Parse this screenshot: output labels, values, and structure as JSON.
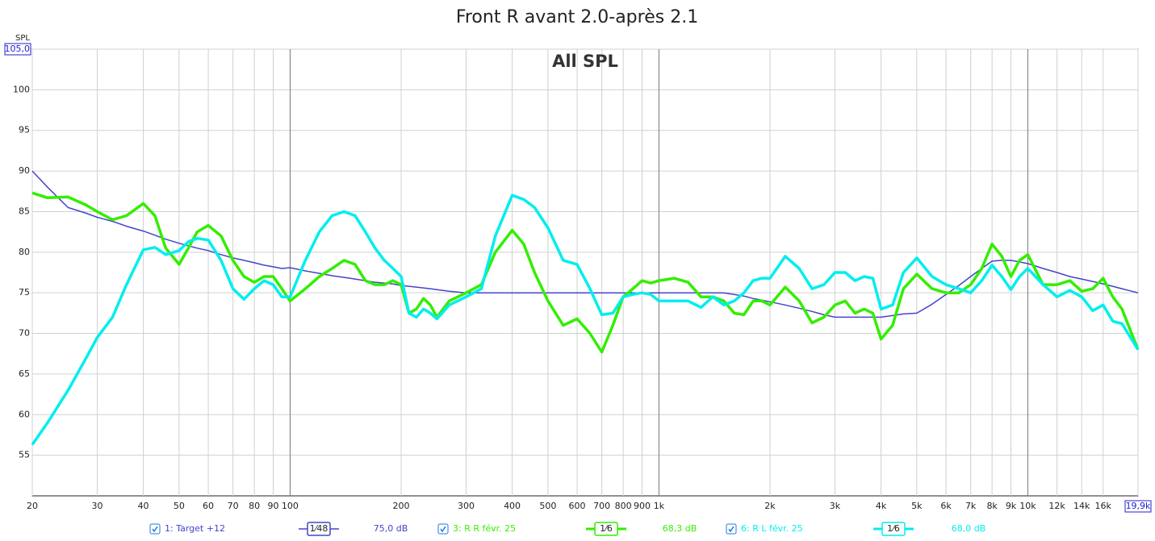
{
  "chart_data": {
    "type": "line",
    "title": "Front R avant 2.0-après 2.1",
    "annotation": "All SPL",
    "y_label": "SPL",
    "log_x": true,
    "grid": true,
    "xlim": [
      20,
      19900
    ],
    "ylim": [
      50,
      105
    ],
    "yticks": [
      55,
      60,
      65,
      70,
      75,
      80,
      85,
      90,
      95,
      100,
      {
        "value": 105,
        "label": "105,0"
      }
    ],
    "xticks": [
      20,
      30,
      40,
      50,
      60,
      70,
      80,
      90,
      100,
      200,
      300,
      400,
      500,
      600,
      700,
      800,
      900,
      {
        "value": 1000,
        "label": "1k"
      },
      {
        "value": 2000,
        "label": "2k"
      },
      {
        "value": 3000,
        "label": "3k"
      },
      {
        "value": 4000,
        "label": "4k"
      },
      {
        "value": 5000,
        "label": "5k"
      },
      {
        "value": 6000,
        "label": "6k"
      },
      {
        "value": 7000,
        "label": "7k"
      },
      {
        "value": 8000,
        "label": "8k"
      },
      {
        "value": 9000,
        "label": "9k"
      },
      {
        "value": 10000,
        "label": "10k"
      },
      {
        "value": 12000,
        "label": "12k"
      },
      {
        "value": 14000,
        "label": "14k"
      },
      {
        "value": 16000,
        "label": "16k"
      },
      {
        "value": 19900,
        "label": "19,9k"
      }
    ],
    "x": [
      20,
      22,
      25,
      28,
      30,
      33,
      36,
      40,
      43,
      46,
      50,
      53,
      56,
      60,
      65,
      70,
      75,
      80,
      85,
      90,
      95,
      100,
      110,
      120,
      130,
      140,
      150,
      160,
      170,
      180,
      190,
      200,
      210,
      220,
      230,
      240,
      250,
      270,
      300,
      330,
      360,
      400,
      430,
      460,
      500,
      550,
      600,
      650,
      700,
      750,
      800,
      850,
      900,
      950,
      1000,
      1100,
      1200,
      1300,
      1400,
      1500,
      1600,
      1700,
      1800,
      1900,
      2000,
      2200,
      2400,
      2600,
      2800,
      3000,
      3200,
      3400,
      3600,
      3800,
      4000,
      4300,
      4600,
      5000,
      5500,
      6000,
      6500,
      7000,
      7500,
      8000,
      8500,
      9000,
      9500,
      10000,
      11000,
      12000,
      13000,
      14000,
      15000,
      16000,
      17000,
      18000,
      19900
    ],
    "series": [
      {
        "name": "1: Target +12",
        "color": "#4444cc",
        "width": 1.5,
        "smoothing": "1⁄48",
        "level": "75,0 dB",
        "values": [
          90,
          88,
          85.5,
          84.8,
          84.3,
          83.8,
          83.2,
          82.6,
          82.1,
          81.6,
          81.1,
          80.8,
          80.5,
          80.2,
          79.7,
          79.3,
          79,
          78.7,
          78.4,
          78.2,
          78,
          78.1,
          77.7,
          77.4,
          77.1,
          76.9,
          76.7,
          76.5,
          76.3,
          76.2,
          76.1,
          75.9,
          75.8,
          75.7,
          75.6,
          75.5,
          75.4,
          75.2,
          75,
          75,
          75,
          75,
          75,
          75,
          75,
          75,
          75,
          75,
          75,
          75,
          75,
          75,
          75,
          75,
          75,
          75,
          75,
          75,
          75,
          75,
          74.8,
          74.6,
          74.3,
          74.1,
          73.9,
          73.5,
          73.1,
          72.7,
          72.3,
          72,
          72,
          72,
          72,
          72,
          72,
          72.2,
          72.4,
          72.5,
          73.6,
          74.8,
          75.9,
          77,
          78,
          78.9,
          79,
          79,
          78.8,
          78.6,
          78,
          77.5,
          77,
          76.7,
          76.4,
          76.1,
          75.8,
          75.5,
          75
        ]
      },
      {
        "name": "3: R R févr. 25",
        "color": "#33ee00",
        "width": 3.5,
        "smoothing": "1⁄6",
        "level": "68,3 dB",
        "values": [
          87.3,
          86.7,
          86.8,
          85.8,
          85,
          84,
          84.5,
          86,
          84.5,
          80.5,
          78.5,
          80.5,
          82.5,
          83.3,
          82,
          79,
          77,
          76.3,
          77,
          77,
          75.5,
          74,
          75.5,
          77,
          78,
          79,
          78.5,
          76.5,
          76,
          76,
          76.5,
          76,
          72.5,
          73,
          74.3,
          73.5,
          72,
          74,
          75,
          76,
          80,
          82.7,
          81,
          77.5,
          74,
          71,
          71.8,
          70,
          67.7,
          71,
          74.5,
          75.5,
          76.5,
          76.2,
          76.5,
          76.8,
          76.3,
          74.5,
          74.5,
          74,
          72.5,
          72.3,
          74,
          74,
          73.5,
          75.7,
          74,
          71.3,
          72,
          73.5,
          74,
          72.5,
          73,
          72.5,
          69.3,
          71,
          75.5,
          77.3,
          75.5,
          75,
          75,
          76,
          78,
          81,
          79.5,
          77,
          79,
          79.7,
          76,
          76,
          76.5,
          75.2,
          75.5,
          76.8,
          74.5,
          73,
          68
        ]
      },
      {
        "name": "6: R L févr. 25",
        "color": "#00eeee",
        "width": 3.5,
        "smoothing": "1⁄6",
        "level": "68,0 dB",
        "values": [
          56.3,
          59,
          63,
          67,
          69.5,
          72,
          76,
          80.3,
          80.6,
          79.7,
          80.2,
          81.3,
          81.7,
          81.5,
          79,
          75.5,
          74.2,
          75.5,
          76.5,
          76,
          74.5,
          74.5,
          79,
          82.5,
          84.5,
          85,
          84.5,
          82.5,
          80.5,
          79,
          78,
          77,
          72.5,
          72,
          73,
          72.5,
          71.8,
          73.5,
          74.5,
          75.5,
          82,
          87,
          86.5,
          85.5,
          83,
          79,
          78.5,
          75.5,
          72.3,
          72.5,
          74.5,
          74.8,
          75,
          74.8,
          74,
          74,
          74,
          73.2,
          74.5,
          73.5,
          74,
          75,
          76.5,
          76.8,
          76.8,
          79.5,
          78,
          75.5,
          76,
          77.5,
          77.5,
          76.5,
          77,
          76.8,
          73,
          73.5,
          77.5,
          79.3,
          77,
          76,
          75.5,
          75,
          76.5,
          78.4,
          77,
          75.4,
          77,
          78,
          76,
          74.5,
          75.3,
          74.5,
          72.8,
          73.5,
          71.5,
          71.2,
          68
        ]
      }
    ]
  }
}
